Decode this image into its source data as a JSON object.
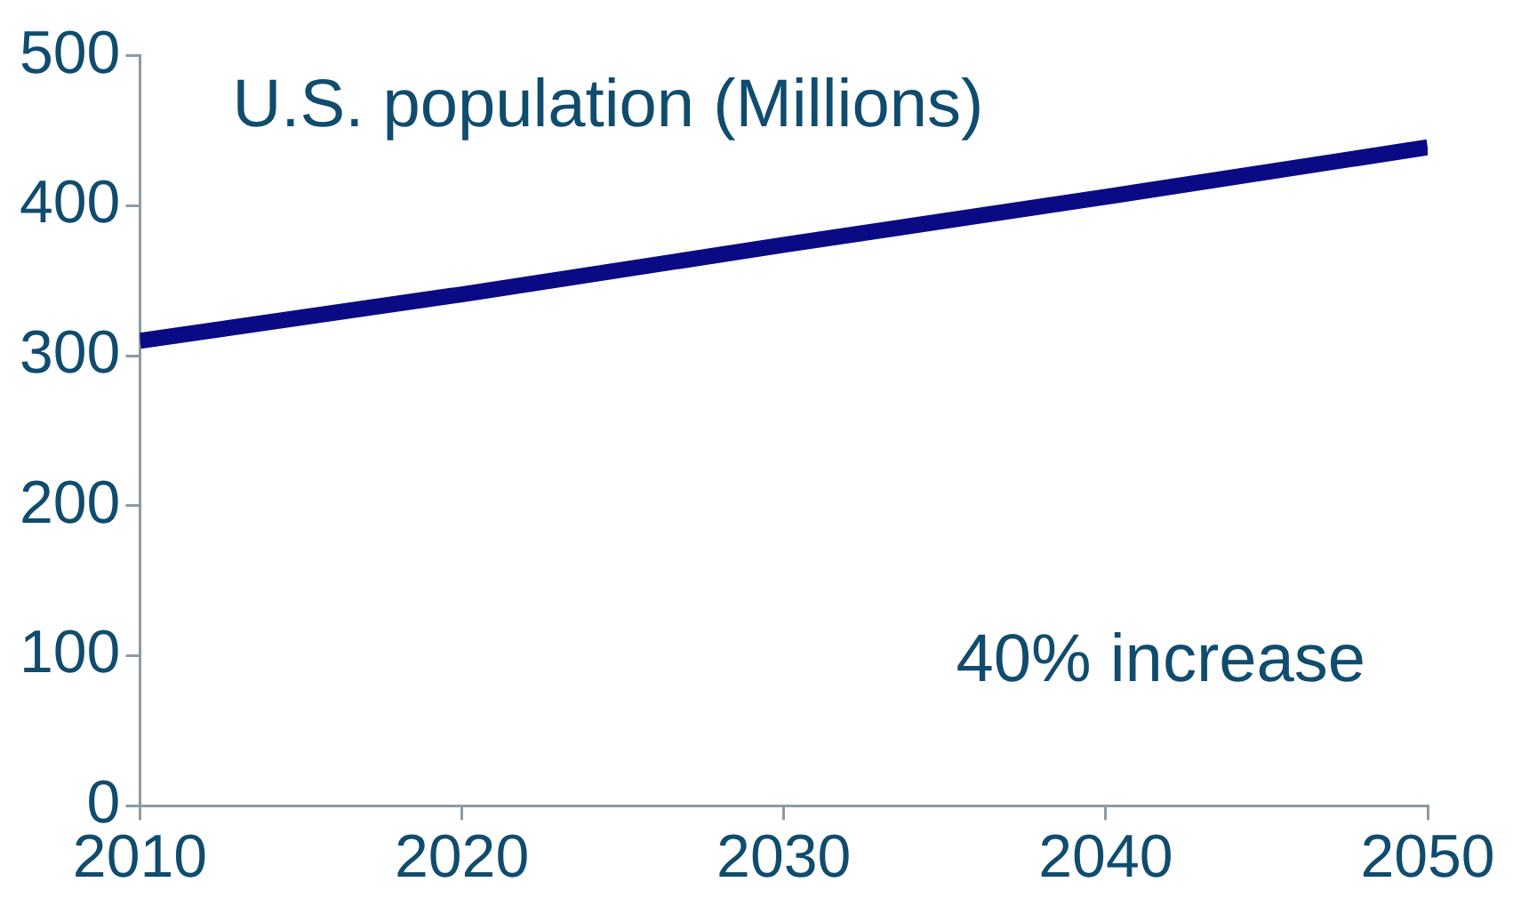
{
  "chart_data": {
    "type": "line",
    "title": "U.S. population (Millions)",
    "annotations": [
      "40% increase"
    ],
    "x": [
      2010,
      2020,
      2030,
      2040,
      2050
    ],
    "series": [
      {
        "color": "#0a0a84",
        "values": [
          310,
          341,
          374,
          406,
          439
        ]
      }
    ],
    "xlim": [
      2010,
      2050
    ],
    "xticks": [
      2010,
      2020,
      2030,
      2040,
      2050
    ],
    "ylim": [
      0,
      500
    ],
    "yticks": [
      0,
      100,
      200,
      300,
      400,
      500
    ],
    "grid": false,
    "legend": false,
    "marker": "none",
    "line_style": "solid"
  }
}
